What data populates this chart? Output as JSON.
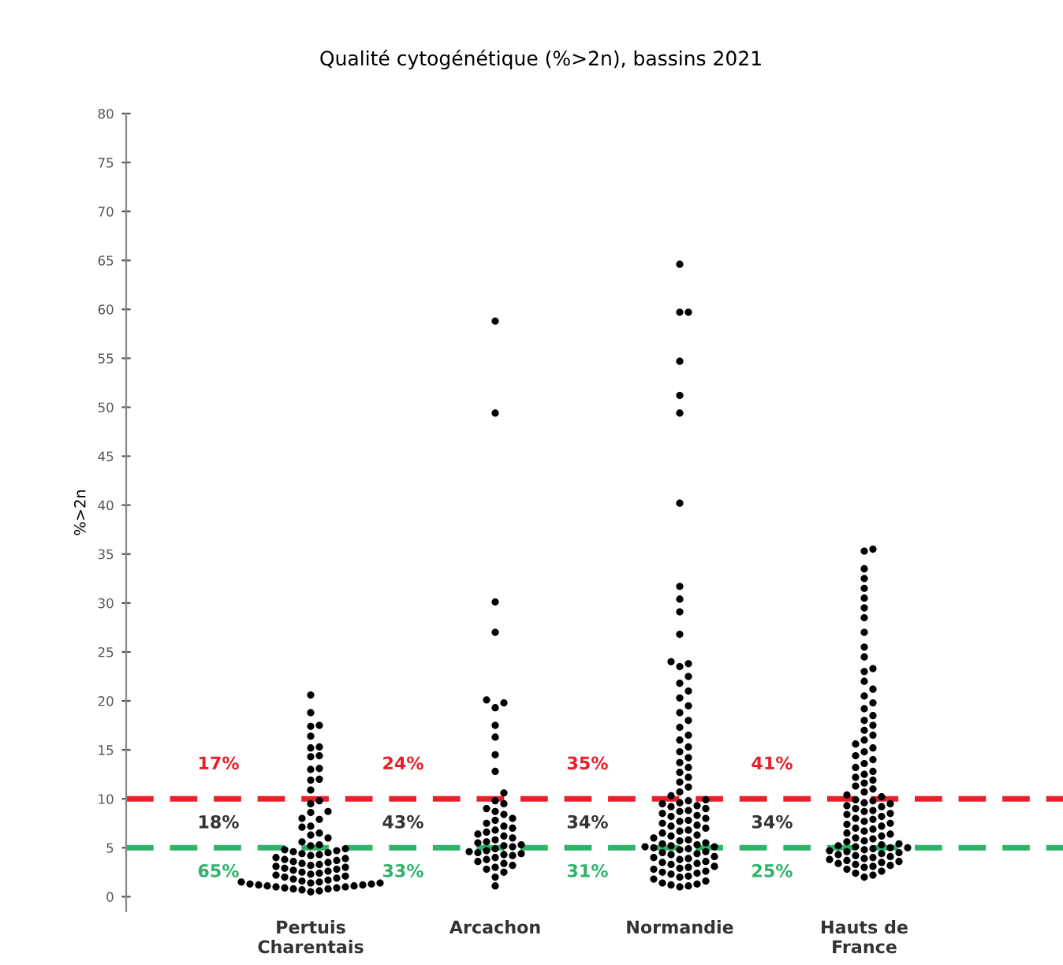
{
  "chart_data": {
    "type": "scatter",
    "title": "Qualité cytogénétique (%>2n), bassins 2021",
    "ylabel": "%>2n",
    "categories": [
      "Pertuis\nCharentais",
      "Arcachon",
      "Normandie",
      "Hauts de\nFrance"
    ],
    "ylim": [
      -1.5,
      80
    ],
    "yticks": [
      0,
      5,
      10,
      15,
      20,
      25,
      30,
      35,
      40,
      45,
      50,
      55,
      60,
      65,
      70,
      75,
      80
    ],
    "grid": false,
    "legend": false,
    "marker": "circle",
    "series": [
      {
        "color": "#000000",
        "x": [
          "Pertuis\nCharentais",
          "Pertuis\nCharentais",
          "Pertuis\nCharentais",
          "Pertuis\nCharentais",
          "Pertuis\nCharentais",
          "Pertuis\nCharentais",
          "Pertuis\nCharentais",
          "Pertuis\nCharentais",
          "Pertuis\nCharentais",
          "Pertuis\nCharentais",
          "Pertuis\nCharentais",
          "Pertuis\nCharentais",
          "Pertuis\nCharentais",
          "Pertuis\nCharentais",
          "Pertuis\nCharentais",
          "Pertuis\nCharentais",
          "Pertuis\nCharentais",
          "Pertuis\nCharentais",
          "Pertuis\nCharentais",
          "Pertuis\nCharentais",
          "Pertuis\nCharentais",
          "Pertuis\nCharentais",
          "Pertuis\nCharentais",
          "Pertuis\nCharentais",
          "Pertuis\nCharentais",
          "Pertuis\nCharentais",
          "Pertuis\nCharentais",
          "Pertuis\nCharentais",
          "Pertuis\nCharentais",
          "Pertuis\nCharentais",
          "Pertuis\nCharentais",
          "Pertuis\nCharentais",
          "Pertuis\nCharentais",
          "Pertuis\nCharentais",
          "Pertuis\nCharentais",
          "Pertuis\nCharentais",
          "Pertuis\nCharentais",
          "Pertuis\nCharentais",
          "Pertuis\nCharentais",
          "Pertuis\nCharentais",
          "Pertuis\nCharentais",
          "Pertuis\nCharentais",
          "Pertuis\nCharentais",
          "Pertuis\nCharentais",
          "Pertuis\nCharentais",
          "Pertuis\nCharentais",
          "Pertuis\nCharentais",
          "Pertuis\nCharentais",
          "Pertuis\nCharentais",
          "Pertuis\nCharentais",
          "Pertuis\nCharentais",
          "Pertuis\nCharentais",
          "Pertuis\nCharentais",
          "Pertuis\nCharentais",
          "Pertuis\nCharentais",
          "Pertuis\nCharentais",
          "Pertuis\nCharentais",
          "Pertuis\nCharentais",
          "Pertuis\nCharentais",
          "Pertuis\nCharentais",
          "Pertuis\nCharentais",
          "Pertuis\nCharentais",
          "Pertuis\nCharentais",
          "Pertuis\nCharentais",
          "Pertuis\nCharentais",
          "Pertuis\nCharentais",
          "Pertuis\nCharentais",
          "Pertuis\nCharentais",
          "Pertuis\nCharentais",
          "Pertuis\nCharentais",
          "Pertuis\nCharentais",
          "Pertuis\nCharentais",
          "Pertuis\nCharentais",
          "Pertuis\nCharentais",
          "Pertuis\nCharentais",
          "Pertuis\nCharentais",
          "Pertuis\nCharentais",
          "Pertuis\nCharentais",
          "Pertuis\nCharentais",
          "Pertuis\nCharentais"
        ],
        "values": [
          20.6,
          18.8,
          17.5,
          17.4,
          16.4,
          15.3,
          15.2,
          14.4,
          14.3,
          13.1,
          13.0,
          12.0,
          11.9,
          10.9,
          9.8,
          9.5,
          8.7,
          8.6,
          8.0,
          7.9,
          7.2,
          7.1,
          6.5,
          6.3,
          6.0,
          5.6,
          5.3,
          5.2,
          4.9,
          4.8,
          4.7,
          4.6,
          4.5,
          4.4,
          4.3,
          4.2,
          4.0,
          3.9,
          3.8,
          3.7,
          3.6,
          3.5,
          3.4,
          3.3,
          3.2,
          3.1,
          3.0,
          2.9,
          2.8,
          2.7,
          2.6,
          2.5,
          2.4,
          2.3,
          2.2,
          2.1,
          2.0,
          1.9,
          1.8,
          1.7,
          1.6,
          1.5,
          1.5,
          1.4,
          1.4,
          1.3,
          1.3,
          1.2,
          1.2,
          1.1,
          1.1,
          1.0,
          1.0,
          0.9,
          0.9,
          0.8,
          0.8,
          0.7,
          0.6,
          0.5
        ]
      },
      {
        "color": "#000000",
        "x": [
          "Arcachon",
          "Arcachon",
          "Arcachon",
          "Arcachon",
          "Arcachon",
          "Arcachon",
          "Arcachon",
          "Arcachon",
          "Arcachon",
          "Arcachon",
          "Arcachon",
          "Arcachon",
          "Arcachon",
          "Arcachon",
          "Arcachon",
          "Arcachon",
          "Arcachon",
          "Arcachon",
          "Arcachon",
          "Arcachon",
          "Arcachon",
          "Arcachon",
          "Arcachon",
          "Arcachon",
          "Arcachon",
          "Arcachon",
          "Arcachon",
          "Arcachon",
          "Arcachon",
          "Arcachon",
          "Arcachon",
          "Arcachon",
          "Arcachon",
          "Arcachon",
          "Arcachon",
          "Arcachon",
          "Arcachon",
          "Arcachon",
          "Arcachon",
          "Arcachon",
          "Arcachon",
          "Arcachon",
          "Arcachon",
          "Arcachon",
          "Arcachon",
          "Arcachon",
          "Arcachon",
          "Arcachon",
          "Arcachon",
          "Arcachon"
        ],
        "values": [
          58.8,
          49.4,
          30.1,
          27.0,
          20.1,
          19.8,
          19.3,
          17.5,
          16.3,
          14.5,
          12.8,
          10.6,
          9.8,
          9.5,
          9.0,
          8.7,
          8.4,
          8.0,
          7.8,
          7.5,
          7.2,
          7.0,
          6.8,
          6.6,
          6.4,
          6.2,
          6.0,
          5.8,
          5.6,
          5.5,
          5.3,
          5.2,
          5.1,
          4.9,
          4.7,
          4.6,
          4.5,
          4.4,
          4.3,
          4.2,
          4.0,
          3.8,
          3.6,
          3.4,
          3.2,
          3.0,
          2.8,
          2.5,
          2.0,
          1.1
        ]
      },
      {
        "color": "#000000",
        "x": [
          "Normandie",
          "Normandie",
          "Normandie",
          "Normandie",
          "Normandie",
          "Normandie",
          "Normandie",
          "Normandie",
          "Normandie",
          "Normandie",
          "Normandie",
          "Normandie",
          "Normandie",
          "Normandie",
          "Normandie",
          "Normandie",
          "Normandie",
          "Normandie",
          "Normandie",
          "Normandie",
          "Normandie",
          "Normandie",
          "Normandie",
          "Normandie",
          "Normandie",
          "Normandie",
          "Normandie",
          "Normandie",
          "Normandie",
          "Normandie",
          "Normandie",
          "Normandie",
          "Normandie",
          "Normandie",
          "Normandie",
          "Normandie",
          "Normandie",
          "Normandie",
          "Normandie",
          "Normandie",
          "Normandie",
          "Normandie",
          "Normandie",
          "Normandie",
          "Normandie",
          "Normandie",
          "Normandie",
          "Normandie",
          "Normandie",
          "Normandie",
          "Normandie",
          "Normandie",
          "Normandie",
          "Normandie",
          "Normandie",
          "Normandie",
          "Normandie",
          "Normandie",
          "Normandie",
          "Normandie",
          "Normandie",
          "Normandie",
          "Normandie",
          "Normandie",
          "Normandie",
          "Normandie",
          "Normandie",
          "Normandie",
          "Normandie",
          "Normandie",
          "Normandie",
          "Normandie",
          "Normandie",
          "Normandie",
          "Normandie",
          "Normandie",
          "Normandie",
          "Normandie",
          "Normandie",
          "Normandie",
          "Normandie",
          "Normandie",
          "Normandie",
          "Normandie",
          "Normandie",
          "Normandie",
          "Normandie",
          "Normandie",
          "Normandie",
          "Normandie",
          "Normandie",
          "Normandie",
          "Normandie",
          "Normandie",
          "Normandie",
          "Normandie",
          "Normandie",
          "Normandie",
          "Normandie",
          "Normandie"
        ],
        "values": [
          64.6,
          59.7,
          59.7,
          54.7,
          51.2,
          49.4,
          40.2,
          31.7,
          30.4,
          29.1,
          26.8,
          24.0,
          23.8,
          23.5,
          22.5,
          21.8,
          21.0,
          20.3,
          19.5,
          18.8,
          18.0,
          17.3,
          16.5,
          16.0,
          15.3,
          14.8,
          14.2,
          13.7,
          13.2,
          12.7,
          12.2,
          11.7,
          11.2,
          10.7,
          10.3,
          9.9,
          9.8,
          9.6,
          9.5,
          9.3,
          9.2,
          9.0,
          8.8,
          8.7,
          8.5,
          8.3,
          8.2,
          8.0,
          7.8,
          7.7,
          7.5,
          7.3,
          7.2,
          7.0,
          6.8,
          6.7,
          6.5,
          6.3,
          6.2,
          6.0,
          5.8,
          5.7,
          5.5,
          5.4,
          5.3,
          5.2,
          5.1,
          5.1,
          5.0,
          4.9,
          4.8,
          4.6,
          4.5,
          4.4,
          4.3,
          4.1,
          4.0,
          3.9,
          3.8,
          3.6,
          3.5,
          3.4,
          3.3,
          3.1,
          3.0,
          2.9,
          2.8,
          2.6,
          2.5,
          2.4,
          2.3,
          2.1,
          2.0,
          1.8,
          1.6,
          1.4,
          1.3,
          1.2,
          1.1,
          1.0
        ]
      },
      {
        "color": "#000000",
        "x": [
          "Hauts de\nFrance",
          "Hauts de\nFrance",
          "Hauts de\nFrance",
          "Hauts de\nFrance",
          "Hauts de\nFrance",
          "Hauts de\nFrance",
          "Hauts de\nFrance",
          "Hauts de\nFrance",
          "Hauts de\nFrance",
          "Hauts de\nFrance",
          "Hauts de\nFrance",
          "Hauts de\nFrance",
          "Hauts de\nFrance",
          "Hauts de\nFrance",
          "Hauts de\nFrance",
          "Hauts de\nFrance",
          "Hauts de\nFrance",
          "Hauts de\nFrance",
          "Hauts de\nFrance",
          "Hauts de\nFrance",
          "Hauts de\nFrance",
          "Hauts de\nFrance",
          "Hauts de\nFrance",
          "Hauts de\nFrance",
          "Hauts de\nFrance",
          "Hauts de\nFrance",
          "Hauts de\nFrance",
          "Hauts de\nFrance",
          "Hauts de\nFrance",
          "Hauts de\nFrance",
          "Hauts de\nFrance",
          "Hauts de\nFrance",
          "Hauts de\nFrance",
          "Hauts de\nFrance",
          "Hauts de\nFrance",
          "Hauts de\nFrance",
          "Hauts de\nFrance",
          "Hauts de\nFrance",
          "Hauts de\nFrance",
          "Hauts de\nFrance",
          "Hauts de\nFrance",
          "Hauts de\nFrance",
          "Hauts de\nFrance",
          "Hauts de\nFrance",
          "Hauts de\nFrance",
          "Hauts de\nFrance",
          "Hauts de\nFrance",
          "Hauts de\nFrance",
          "Hauts de\nFrance",
          "Hauts de\nFrance",
          "Hauts de\nFrance",
          "Hauts de\nFrance",
          "Hauts de\nFrance",
          "Hauts de\nFrance",
          "Hauts de\nFrance",
          "Hauts de\nFrance",
          "Hauts de\nFrance",
          "Hauts de\nFrance",
          "Hauts de\nFrance",
          "Hauts de\nFrance",
          "Hauts de\nFrance",
          "Hauts de\nFrance",
          "Hauts de\nFrance",
          "Hauts de\nFrance",
          "Hauts de\nFrance",
          "Hauts de\nFrance",
          "Hauts de\nFrance",
          "Hauts de\nFrance",
          "Hauts de\nFrance",
          "Hauts de\nFrance",
          "Hauts de\nFrance",
          "Hauts de\nFrance",
          "Hauts de\nFrance",
          "Hauts de\nFrance",
          "Hauts de\nFrance",
          "Hauts de\nFrance",
          "Hauts de\nFrance",
          "Hauts de\nFrance",
          "Hauts de\nFrance",
          "Hauts de\nFrance",
          "Hauts de\nFrance",
          "Hauts de\nFrance",
          "Hauts de\nFrance",
          "Hauts de\nFrance",
          "Hauts de\nFrance",
          "Hauts de\nFrance",
          "Hauts de\nFrance",
          "Hauts de\nFrance",
          "Hauts de\nFrance",
          "Hauts de\nFrance",
          "Hauts de\nFrance",
          "Hauts de\nFrance",
          "Hauts de\nFrance",
          "Hauts de\nFrance",
          "Hauts de\nFrance",
          "Hauts de\nFrance",
          "Hauts de\nFrance",
          "Hauts de\nFrance",
          "Hauts de\nFrance",
          "Hauts de\nFrance"
        ],
        "values": [
          35.5,
          35.3,
          33.5,
          32.5,
          31.5,
          30.5,
          29.5,
          28.5,
          27.0,
          25.5,
          24.5,
          23.3,
          23.0,
          22.0,
          21.2,
          20.5,
          19.8,
          19.2,
          18.5,
          18.0,
          17.5,
          17.0,
          16.5,
          16.0,
          15.6,
          15.2,
          14.8,
          14.4,
          14.0,
          13.6,
          13.2,
          12.8,
          12.5,
          12.2,
          11.9,
          11.6,
          11.3,
          11.0,
          10.7,
          10.4,
          10.2,
          9.9,
          9.8,
          9.6,
          9.5,
          9.3,
          9.2,
          9.0,
          8.8,
          8.7,
          8.5,
          8.4,
          8.2,
          8.0,
          7.9,
          7.7,
          7.5,
          7.4,
          7.2,
          7.0,
          6.9,
          6.7,
          6.5,
          6.4,
          6.2,
          6.0,
          5.9,
          5.7,
          5.6,
          5.4,
          5.3,
          5.2,
          5.1,
          5.0,
          5.0,
          4.9,
          4.8,
          4.7,
          4.6,
          4.5,
          4.4,
          4.3,
          4.2,
          4.1,
          4.0,
          3.9,
          3.8,
          3.7,
          3.6,
          3.5,
          3.4,
          3.3,
          3.2,
          3.1,
          3.0,
          2.8,
          2.6,
          2.4,
          2.2,
          2.0
        ]
      }
    ],
    "ref_lines": [
      {
        "axis": "y",
        "value": 10,
        "color": "#e8202a",
        "line_style": "dashed"
      },
      {
        "axis": "y",
        "value": 5,
        "color": "#2fb36b",
        "line_style": "dashed"
      }
    ],
    "annotations": [
      "17%",
      "18%",
      "65%",
      "24%",
      "43%",
      "33%",
      "35%",
      "34%",
      "31%",
      "41%",
      "34%",
      "25%"
    ]
  }
}
